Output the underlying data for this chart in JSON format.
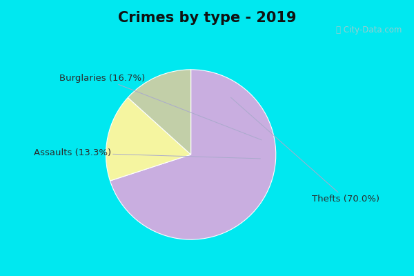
{
  "title": "Crimes by type - 2019",
  "slices": [
    {
      "label": "Thefts",
      "pct": 70.0,
      "color": "#c9aee0"
    },
    {
      "label": "Burglaries",
      "pct": 16.7,
      "color": "#f5f5a0"
    },
    {
      "label": "Assaults",
      "pct": 13.3,
      "color": "#c2cfa8"
    }
  ],
  "border_color": "#00e8f0",
  "border_thickness": 0.06,
  "background_color": "#d8efe4",
  "title_fontsize": 15,
  "label_fontsize": 9.5,
  "watermark": "ⓘ City-Data.com",
  "label_color": "#2a2a2a",
  "line_color": "#aaaacc"
}
